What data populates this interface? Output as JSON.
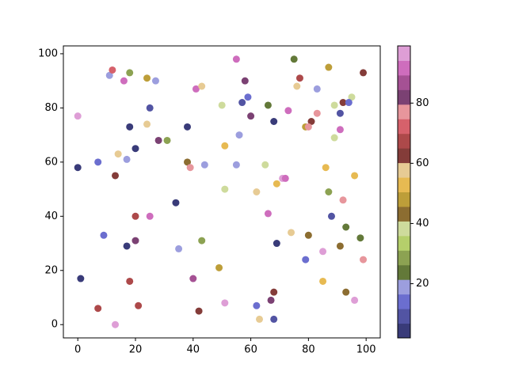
{
  "chart_data": {
    "type": "scatter",
    "x": [
      0,
      11,
      12,
      16,
      18,
      24,
      27,
      25,
      41,
      43,
      55,
      58,
      57,
      59,
      66,
      60,
      68,
      75,
      76,
      77,
      83,
      87,
      99,
      95,
      89,
      92,
      94,
      91,
      91,
      89,
      83,
      81,
      79,
      80,
      73,
      50,
      56,
      51,
      24,
      18,
      38,
      28,
      31,
      20,
      14,
      17,
      0,
      7,
      13,
      38,
      39,
      44,
      55,
      65,
      71,
      72,
      69,
      86,
      96,
      51,
      62,
      87,
      92,
      34,
      20,
      25,
      66,
      88,
      93,
      98,
      74,
      80,
      91,
      85,
      79,
      99,
      9,
      20,
      17,
      35,
      43,
      69,
      49,
      40,
      18,
      1,
      85,
      93,
      96,
      68,
      67,
      62,
      51,
      7,
      21,
      42,
      13,
      63,
      68
    ],
    "y": [
      77,
      92,
      94,
      90,
      93,
      91,
      90,
      80,
      87,
      88,
      98,
      90,
      82,
      84,
      81,
      77,
      75,
      98,
      88,
      91,
      87,
      95,
      93,
      84,
      81,
      82,
      82,
      78,
      72,
      69,
      78,
      75,
      73,
      73,
      79,
      81,
      70,
      66,
      74,
      73,
      73,
      68,
      68,
      65,
      63,
      61,
      58,
      60,
      55,
      60,
      58,
      59,
      59,
      59,
      54,
      54,
      52,
      58,
      55,
      50,
      49,
      49,
      46,
      45,
      40,
      40,
      41,
      40,
      36,
      32,
      34,
      33,
      29,
      27,
      24,
      24,
      33,
      31,
      29,
      28,
      31,
      30,
      21,
      17,
      16,
      17,
      16,
      12,
      9,
      12,
      9,
      7,
      8,
      6,
      7,
      5,
      0,
      2,
      2
    ],
    "c": [
      97,
      19,
      72,
      92,
      29,
      48,
      19,
      9,
      92,
      58,
      92,
      82,
      9,
      14,
      24,
      82,
      4,
      24,
      58,
      68,
      19,
      48,
      63,
      38,
      38,
      63,
      14,
      9,
      92,
      38,
      77,
      63,
      48,
      77,
      92,
      38,
      19,
      53,
      58,
      4,
      4,
      82,
      29,
      4,
      58,
      19,
      4,
      14,
      63,
      43,
      77,
      19,
      19,
      38,
      97,
      92,
      53,
      53,
      53,
      38,
      58,
      29,
      77,
      4,
      68,
      92,
      92,
      9,
      24,
      24,
      58,
      43,
      43,
      97,
      14,
      77,
      14,
      82,
      4,
      19,
      29,
      4,
      48,
      87,
      68,
      4,
      53,
      43,
      97,
      63,
      82,
      14,
      97,
      68,
      68,
      63,
      97,
      58,
      9
    ],
    "colors": [
      "#393b79",
      "#5254a3",
      "#6b6ecf",
      "#9c9ede",
      "#637939",
      "#8ca252",
      "#b5cf6b",
      "#cedb9c",
      "#8c6d31",
      "#bd9e39",
      "#e7ba52",
      "#e7cb94",
      "#843c39",
      "#ad494a",
      "#d6616b",
      "#e7969c",
      "#7b4173",
      "#a55194",
      "#ce6dbd",
      "#de9ed6"
    ],
    "clim": [
      2,
      99
    ],
    "xlim": [
      -5,
      104.9
    ],
    "ylim": [
      -4.9,
      102.9
    ],
    "xticks": [
      0,
      20,
      40,
      60,
      80,
      100
    ],
    "yticks": [
      0,
      20,
      40,
      60,
      80,
      100
    ],
    "colorbar_ticks": [
      20,
      40,
      60,
      80
    ]
  }
}
